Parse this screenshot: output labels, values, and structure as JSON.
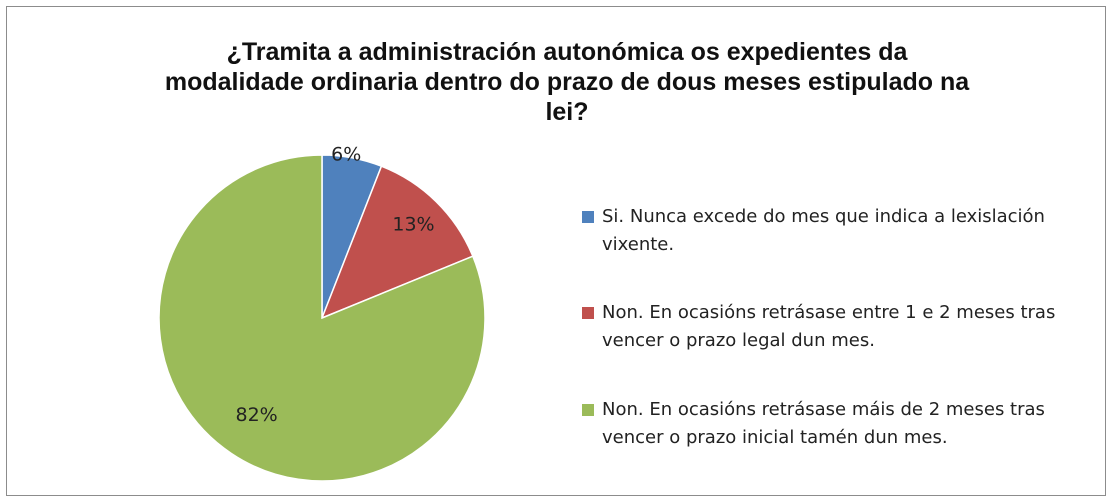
{
  "chart_data": {
    "type": "pie",
    "title": "¿Tramita a administración autonómica os expedientes da modalidade ordinaria dentro do prazo de dous meses estipulado na lei?",
    "categories": [
      "Si. Nunca excede do mes que indica a lexislación vixente.",
      "Non. En ocasións retrásase entre 1 e 2 meses tras vencer o prazo legal dun mes.",
      "Non. En ocasións retrásase máis de 2 meses tras vencer o prazo inicial tamén dun mes."
    ],
    "values": [
      6,
      13,
      82
    ],
    "value_labels": [
      "6%",
      "13%",
      "82%"
    ],
    "colors": [
      "#4f81bd",
      "#c0504d",
      "#9bbb59"
    ],
    "legend": "right"
  }
}
